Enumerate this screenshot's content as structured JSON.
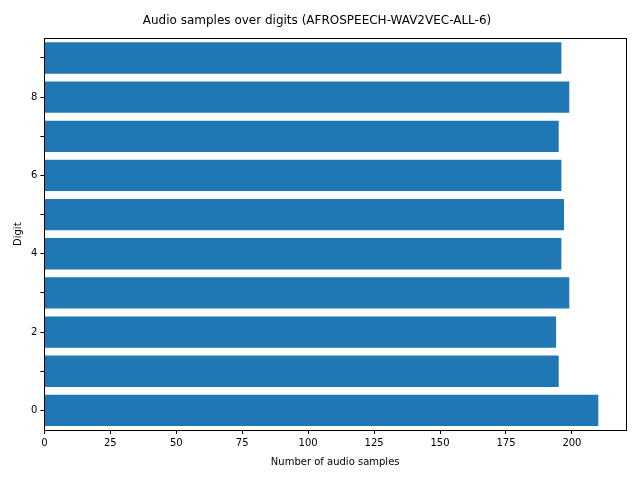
{
  "chart_data": {
    "type": "bar",
    "orientation": "horizontal",
    "title": "Audio samples over digits (AFROSPEECH-WAV2VEC-ALL-6)",
    "x_label": "Number of audio samples",
    "y_label": "Digit",
    "categories": [
      "0",
      null,
      "2",
      null,
      "4",
      null,
      "6",
      null,
      "8",
      null
    ],
    "values": [
      210,
      195,
      194,
      199,
      196,
      197,
      196,
      195,
      199,
      196
    ],
    "color": "#1f77b4",
    "xlim": [
      0,
      220.5
    ],
    "xticks": [
      0,
      25,
      50,
      75,
      100,
      125,
      150,
      175,
      200
    ],
    "grid": false
  }
}
